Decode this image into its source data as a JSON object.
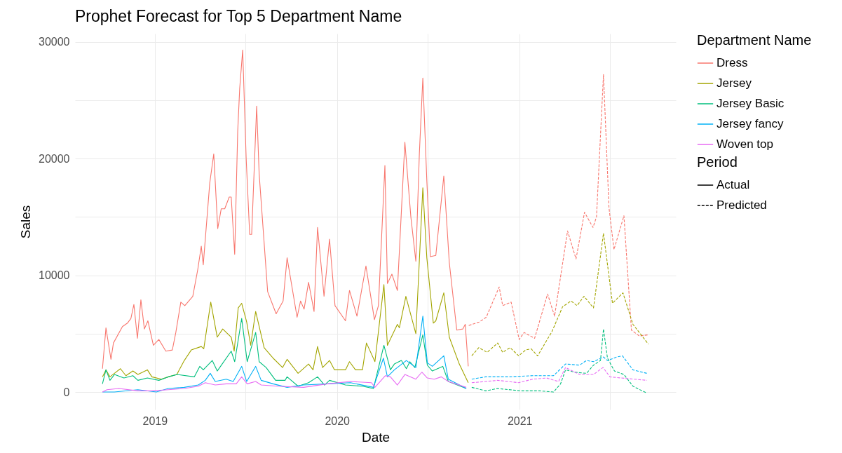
{
  "chart_data": {
    "type": "line",
    "title": "Prophet Forecast for Top 5 Department Name",
    "xlabel": "Date",
    "ylabel": "Sales",
    "legend_title": [
      "Department Name",
      "Period"
    ],
    "annotations": [
      "Actual",
      "Predicted"
    ],
    "legend": "right",
    "grid": true,
    "xlim": [
      "2018-07-25",
      "2021-11-10"
    ],
    "xticks": [
      {
        "value": "2019-01-01",
        "label": "2019"
      },
      {
        "value": "2019-07-01",
        "label": null
      },
      {
        "value": "2020-01-01",
        "label": "2020"
      },
      {
        "value": "2020-07-01",
        "label": null
      },
      {
        "value": "2021-01-01",
        "label": "2021"
      },
      {
        "value": "2021-07-01",
        "label": null
      }
    ],
    "ylim": [
      -1500,
      30700
    ],
    "yticks": [
      0,
      {
        "value": 5000,
        "label": null
      },
      10000,
      {
        "value": 15000,
        "label": null
      },
      20000,
      {
        "value": 25000,
        "label": null
      },
      30000
    ],
    "series": [
      {
        "name": "Dress",
        "color": "#f8766d",
        "line_style": "solid",
        "x": [
          "2018-09-18",
          "2018-09-25",
          "2018-10-05",
          "2018-10-10",
          "2018-10-28",
          "2018-11-07",
          "2018-11-14",
          "2018-11-20",
          "2018-11-27",
          "2018-12-04",
          "2018-12-11",
          "2018-12-18",
          "2018-12-29",
          "2019-01-09",
          "2019-01-23",
          "2019-02-05",
          "2019-02-12",
          "2019-02-22",
          "2019-03-02",
          "2019-03-18",
          "2019-03-28",
          "2019-04-04",
          "2019-04-08",
          "2019-04-21",
          "2019-04-29",
          "2019-05-07",
          "2019-05-14",
          "2019-05-21",
          "2019-05-30",
          "2019-06-03",
          "2019-06-10",
          "2019-06-16",
          "2019-06-20",
          "2019-06-26",
          "2019-07-03",
          "2019-07-10",
          "2019-07-14",
          "2019-07-24",
          "2019-07-29",
          "2019-08-15",
          "2019-09-01",
          "2019-09-15",
          "2019-09-23",
          "2019-10-13",
          "2019-10-20",
          "2019-10-27",
          "2019-11-05",
          "2019-11-16",
          "2019-11-23",
          "2019-12-06",
          "2019-12-17",
          "2019-12-28",
          "2020-01-18",
          "2020-01-26",
          "2020-02-10",
          "2020-02-28",
          "2020-03-16",
          "2020-03-24",
          "2020-04-06",
          "2020-04-11",
          "2020-04-20",
          "2020-05-01",
          "2020-05-16",
          "2020-05-28",
          "2020-06-07",
          "2020-06-14",
          "2020-06-21",
          "2020-06-29",
          "2020-07-06",
          "2020-07-17",
          "2020-08-02",
          "2020-08-13",
          "2020-08-28",
          "2020-09-09",
          "2020-09-14",
          "2020-09-20"
        ],
        "values": [
          2000,
          5500,
          2800,
          4200,
          5600,
          5900,
          6300,
          7500,
          4600,
          7900,
          5400,
          6100,
          4000,
          4500,
          3500,
          3600,
          5100,
          7700,
          7400,
          8200,
          10500,
          12500,
          10900,
          17900,
          20400,
          14000,
          15700,
          15700,
          16700,
          16700,
          11800,
          22300,
          26000,
          29300,
          20000,
          13500,
          13500,
          24500,
          18700,
          8600,
          6700,
          7800,
          11500,
          6400,
          7800,
          7100,
          9400,
          6900,
          14100,
          8200,
          13100,
          7400,
          6100,
          8700,
          6500,
          10800,
          6200,
          7400,
          19400,
          9300,
          10100,
          8700,
          21400,
          15000,
          11200,
          20400,
          26900,
          18100,
          11600,
          11700,
          18500,
          11100,
          5300,
          5400,
          5800,
          2200
        ]
      },
      {
        "name": "Jersey",
        "color": "#a3a500",
        "line_style": "solid",
        "x": [
          "2018-09-18",
          "2018-09-25",
          "2018-10-03",
          "2018-10-12",
          "2018-10-24",
          "2018-11-04",
          "2018-11-18",
          "2018-11-28",
          "2018-12-17",
          "2018-12-26",
          "2019-01-14",
          "2019-01-28",
          "2019-02-14",
          "2019-03-01",
          "2019-03-15",
          "2019-04-04",
          "2019-04-09",
          "2019-04-23",
          "2019-05-06",
          "2019-05-17",
          "2019-06-03",
          "2019-06-09",
          "2019-06-17",
          "2019-06-24",
          "2019-07-04",
          "2019-07-12",
          "2019-07-22",
          "2019-08-08",
          "2019-08-26",
          "2019-09-14",
          "2019-09-23",
          "2019-10-15",
          "2019-11-05",
          "2019-11-14",
          "2019-11-23",
          "2019-12-03",
          "2019-12-17",
          "2019-12-27",
          "2020-01-18",
          "2020-01-26",
          "2020-02-07",
          "2020-02-21",
          "2020-02-29",
          "2020-03-17",
          "2020-04-04",
          "2020-04-11",
          "2020-05-01",
          "2020-05-05",
          "2020-05-18",
          "2020-06-07",
          "2020-06-21",
          "2020-06-29",
          "2020-07-12",
          "2020-07-17",
          "2020-08-02",
          "2020-08-13",
          "2020-09-02",
          "2020-09-20"
        ],
        "values": [
          1300,
          1900,
          1300,
          1600,
          2000,
          1400,
          1800,
          1500,
          1900,
          1300,
          1100,
          1300,
          1500,
          2700,
          3600,
          3900,
          3700,
          7700,
          4700,
          5400,
          4700,
          3500,
          7200,
          7600,
          6000,
          4000,
          6900,
          3800,
          2900,
          2100,
          2800,
          1600,
          2400,
          1900,
          3900,
          2100,
          2700,
          1900,
          1900,
          2600,
          1900,
          1900,
          4200,
          2600,
          9200,
          4000,
          5800,
          5500,
          8200,
          5000,
          17500,
          11500,
          5900,
          6100,
          8500,
          4700,
          2400,
          800
        ]
      },
      {
        "name": "Jersey Basic",
        "color": "#00bf7d",
        "line_style": "solid",
        "x": [
          "2018-09-18",
          "2018-09-25",
          "2018-10-03",
          "2018-10-12",
          "2018-10-31",
          "2018-11-18",
          "2018-11-28",
          "2018-12-17",
          "2019-01-09",
          "2019-01-28",
          "2019-02-15",
          "2019-03-21",
          "2019-04-01",
          "2019-04-08",
          "2019-04-26",
          "2019-05-06",
          "2019-06-03",
          "2019-06-10",
          "2019-06-24",
          "2019-07-05",
          "2019-07-22",
          "2019-07-29",
          "2019-08-12",
          "2019-08-31",
          "2019-09-19",
          "2019-09-23",
          "2019-10-15",
          "2019-11-05",
          "2019-11-23",
          "2019-12-07",
          "2019-12-17",
          "2020-01-18",
          "2020-02-21",
          "2020-03-14",
          "2020-04-04",
          "2020-04-17",
          "2020-04-25",
          "2020-05-09",
          "2020-05-19",
          "2020-05-26",
          "2020-06-05",
          "2020-06-21",
          "2020-06-30",
          "2020-07-10",
          "2020-07-31",
          "2020-08-11",
          "2020-09-16"
        ],
        "values": [
          700,
          1900,
          1000,
          1500,
          1200,
          1400,
          1000,
          1200,
          1000,
          1300,
          1500,
          1300,
          2200,
          1900,
          2700,
          1800,
          3500,
          2600,
          6300,
          2600,
          5100,
          2600,
          2100,
          1000,
          1000,
          1300,
          500,
          800,
          1300,
          600,
          1000,
          600,
          500,
          300,
          4000,
          1900,
          2400,
          2700,
          2000,
          2600,
          2100,
          4900,
          2300,
          1800,
          2200,
          900,
          300
        ]
      },
      {
        "name": "Jersey fancy",
        "color": "#00b0f6",
        "line_style": "solid",
        "x": [
          "2018-09-18",
          "2018-10-12",
          "2018-11-28",
          "2019-01-04",
          "2019-01-28",
          "2019-03-01",
          "2019-03-29",
          "2019-04-12",
          "2019-04-22",
          "2019-05-02",
          "2019-05-24",
          "2019-06-07",
          "2019-06-24",
          "2019-07-04",
          "2019-07-22",
          "2019-08-02",
          "2019-08-26",
          "2019-09-23",
          "2019-10-26",
          "2019-12-13",
          "2020-01-28",
          "2020-03-14",
          "2020-04-03",
          "2020-04-11",
          "2020-04-25",
          "2020-05-19",
          "2020-06-07",
          "2020-06-21",
          "2020-06-30",
          "2020-07-10",
          "2020-08-02",
          "2020-08-11",
          "2020-09-16"
        ],
        "values": [
          0,
          0,
          200,
          0,
          300,
          400,
          600,
          1000,
          1600,
          900,
          1100,
          900,
          2200,
          900,
          2200,
          1000,
          700,
          400,
          600,
          700,
          800,
          400,
          2900,
          1300,
          1900,
          2700,
          2100,
          6500,
          2500,
          2200,
          3100,
          1100,
          300
        ]
      },
      {
        "name": "Woven top",
        "color": "#e76bf3",
        "line_style": "solid",
        "x": [
          "2018-09-18",
          "2018-09-27",
          "2018-10-21",
          "2018-11-28",
          "2018-12-26",
          "2019-01-28",
          "2019-03-01",
          "2019-03-29",
          "2019-04-12",
          "2019-05-02",
          "2019-05-24",
          "2019-06-13",
          "2019-06-24",
          "2019-07-05",
          "2019-07-22",
          "2019-08-02",
          "2019-09-05",
          "2019-10-26",
          "2019-12-13",
          "2020-01-28",
          "2020-03-10",
          "2020-03-17",
          "2020-04-07",
          "2020-04-17",
          "2020-05-01",
          "2020-05-16",
          "2020-06-07",
          "2020-06-19",
          "2020-06-30",
          "2020-07-14",
          "2020-07-28",
          "2020-08-11",
          "2020-09-16"
        ],
        "values": [
          0,
          200,
          300,
          100,
          100,
          200,
          300,
          500,
          800,
          600,
          700,
          700,
          1300,
          700,
          900,
          600,
          500,
          400,
          700,
          900,
          800,
          400,
          1400,
          1300,
          600,
          1500,
          1100,
          1700,
          1200,
          1100,
          1300,
          900,
          400
        ]
      },
      {
        "color": "#f8766d",
        "line_style": "dashed",
        "x": [
          "2020-09-21",
          "2020-10-12",
          "2020-10-26",
          "2020-11-21",
          "2020-11-28",
          "2020-12-15",
          "2020-12-31",
          "2021-01-10",
          "2021-01-31",
          "2021-02-26",
          "2021-03-12",
          "2021-04-07",
          "2021-04-24",
          "2021-05-11",
          "2021-05-28",
          "2021-06-04",
          "2021-06-18",
          "2021-06-29",
          "2021-07-09",
          "2021-07-29",
          "2021-08-13",
          "2021-08-29",
          "2021-09-16"
        ],
        "values": [
          5700,
          6000,
          6400,
          9000,
          7400,
          7700,
          4500,
          5100,
          4600,
          8400,
          6500,
          13800,
          11400,
          15400,
          14100,
          15000,
          27200,
          15800,
          12200,
          15100,
          5300,
          4800,
          4900
        ]
      },
      {
        "color": "#a3a500",
        "line_style": "dashed",
        "x": [
          "2020-09-27",
          "2020-10-11",
          "2020-10-28",
          "2020-11-18",
          "2020-11-28",
          "2020-12-13",
          "2020-12-30",
          "2021-01-13",
          "2021-01-24",
          "2021-02-06",
          "2021-03-07",
          "2021-03-28",
          "2021-04-14",
          "2021-04-26",
          "2021-05-10",
          "2021-05-29",
          "2021-06-18",
          "2021-07-06",
          "2021-07-27",
          "2021-08-16",
          "2021-09-16"
        ],
        "values": [
          3100,
          3800,
          3400,
          4200,
          3400,
          3800,
          3100,
          3600,
          3700,
          3100,
          5200,
          7300,
          7800,
          7400,
          8200,
          7200,
          13600,
          7600,
          8500,
          5800,
          4100
        ]
      },
      {
        "color": "#00bf7d",
        "line_style": "dashed",
        "x": [
          "2020-09-27",
          "2020-10-25",
          "2020-11-18",
          "2021-01-03",
          "2021-02-10",
          "2021-03-10",
          "2021-03-24",
          "2021-04-03",
          "2021-04-21",
          "2021-05-15",
          "2021-05-29",
          "2021-06-12",
          "2021-06-18",
          "2021-06-26",
          "2021-07-10",
          "2021-07-29",
          "2021-08-16",
          "2021-09-13"
        ],
        "values": [
          400,
          100,
          300,
          100,
          100,
          0,
          700,
          1900,
          1700,
          1600,
          2300,
          2700,
          5400,
          2900,
          1800,
          1500,
          500,
          -100
        ]
      },
      {
        "color": "#00b0f6",
        "line_style": "dashed",
        "x": [
          "2020-09-27",
          "2020-10-25",
          "2020-12-12",
          "2021-01-27",
          "2021-03-10",
          "2021-04-03",
          "2021-05-01",
          "2021-05-15",
          "2021-05-29",
          "2021-06-18",
          "2021-06-26",
          "2021-07-15",
          "2021-07-26",
          "2021-08-16",
          "2021-09-13"
        ],
        "values": [
          1100,
          1300,
          1300,
          1400,
          1400,
          2400,
          2300,
          2700,
          2600,
          3000,
          2700,
          3000,
          3100,
          1900,
          1600
        ]
      },
      {
        "color": "#e76bf3",
        "line_style": "dashed",
        "x": [
          "2020-09-27",
          "2020-10-25",
          "2020-11-18",
          "2020-12-30",
          "2021-01-27",
          "2021-02-24",
          "2021-03-20",
          "2021-04-03",
          "2021-05-01",
          "2021-05-29",
          "2021-06-17",
          "2021-07-01",
          "2021-07-24",
          "2021-09-13"
        ],
        "values": [
          800,
          900,
          1000,
          800,
          1100,
          1200,
          900,
          2100,
          1500,
          1500,
          2100,
          1300,
          1200,
          1000
        ]
      }
    ]
  }
}
